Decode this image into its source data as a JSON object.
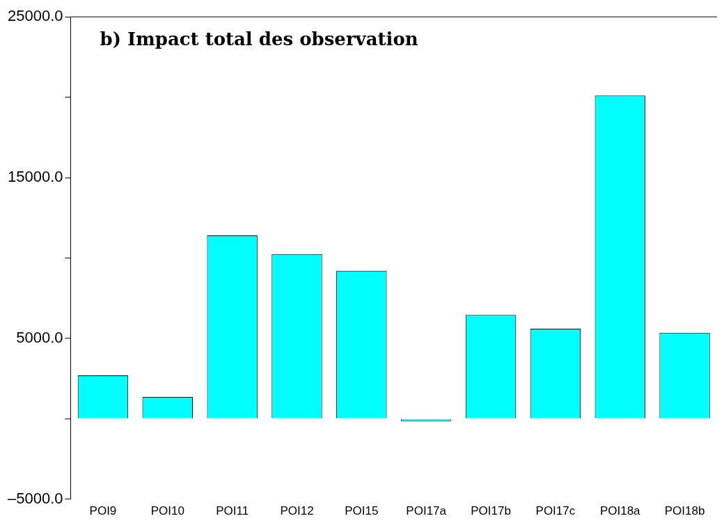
{
  "chart_data": {
    "type": "bar",
    "title": "b) Impact total des observation",
    "categories": [
      "POI9",
      "POI10",
      "POI11",
      "POI12",
      "POI15",
      "POI17a",
      "POI17b",
      "POI17c",
      "POI18a",
      "POI18b"
    ],
    "values": [
      2700,
      1350,
      11400,
      10250,
      9200,
      -150,
      6450,
      5600,
      20100,
      5350
    ],
    "color": "#00ffff",
    "ylim": [
      -5000,
      25000
    ],
    "yticks": [
      {
        "value": -5000,
        "label": "–5000.0"
      },
      {
        "value": 0,
        "label": null
      },
      {
        "value": 5000,
        "label": "5000.0"
      },
      {
        "value": 10000,
        "label": null
      },
      {
        "value": 15000,
        "label": "15000.0"
      },
      {
        "value": 20000,
        "label": null
      },
      {
        "value": 25000,
        "label": "25000.0"
      }
    ],
    "grid": false,
    "legend": false
  }
}
